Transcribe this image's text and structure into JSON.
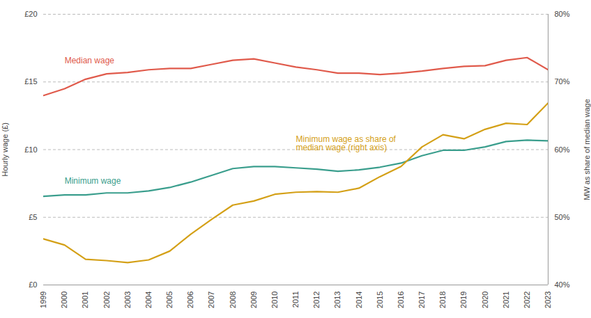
{
  "chart_data": {
    "type": "line",
    "x": [
      1999,
      2000,
      2001,
      2002,
      2003,
      2004,
      2005,
      2006,
      2007,
      2008,
      2009,
      2010,
      2011,
      2012,
      2013,
      2014,
      2015,
      2016,
      2017,
      2018,
      2019,
      2020,
      2021,
      2022,
      2023
    ],
    "series": [
      {
        "name": "Median wage",
        "color": "#e05a4b",
        "axis": "y",
        "values": [
          14.0,
          14.5,
          15.2,
          15.6,
          15.7,
          15.9,
          16.0,
          16.0,
          16.3,
          16.6,
          16.7,
          16.4,
          16.1,
          15.9,
          15.65,
          15.65,
          15.55,
          15.65,
          15.8,
          16.0,
          16.15,
          16.2,
          16.6,
          16.8,
          15.9
        ]
      },
      {
        "name": "Minimum wage",
        "color": "#3a9e8d",
        "axis": "y",
        "values": [
          6.55,
          6.65,
          6.65,
          6.8,
          6.8,
          6.95,
          7.2,
          7.6,
          8.1,
          8.6,
          8.75,
          8.75,
          8.65,
          8.55,
          8.4,
          8.5,
          8.7,
          9.0,
          9.55,
          9.95,
          9.95,
          10.2,
          10.6,
          10.7,
          10.65
        ]
      },
      {
        "name": "Minimum wage as share of\nmedian wage (right axis)",
        "color": "#d4a017",
        "axis": "y2",
        "values": [
          0.468,
          0.459,
          0.438,
          0.436,
          0.433,
          0.437,
          0.45,
          0.475,
          0.497,
          0.518,
          0.524,
          0.534,
          0.537,
          0.538,
          0.537,
          0.543,
          0.56,
          0.575,
          0.604,
          0.622,
          0.616,
          0.63,
          0.639,
          0.637,
          0.669
        ]
      }
    ],
    "y_label": "Hourly wage (£)",
    "y2_label": "MW as share of median wage",
    "xlim": [
      1999,
      2023
    ],
    "xticks": [
      1999,
      2000,
      2001,
      2002,
      2003,
      2004,
      2005,
      2006,
      2007,
      2008,
      2009,
      2010,
      2011,
      2012,
      2013,
      2014,
      2015,
      2016,
      2017,
      2018,
      2019,
      2020,
      2021,
      2022,
      2023
    ],
    "ylim": [
      0,
      20
    ],
    "yticks": [
      {
        "value": 0,
        "label": "£0"
      },
      {
        "value": 5,
        "label": "£5"
      },
      {
        "value": 10,
        "label": "£10"
      },
      {
        "value": 15,
        "label": "£15"
      },
      {
        "value": 20,
        "label": "£20"
      }
    ],
    "y2lim": [
      0.4,
      0.8
    ],
    "y2ticks": [
      {
        "value": 0.4,
        "label": "40%"
      },
      {
        "value": 0.5,
        "label": "50%"
      },
      {
        "value": 0.6,
        "label": "60%"
      },
      {
        "value": 0.7,
        "label": "70%"
      },
      {
        "value": 0.8,
        "label": "80%"
      }
    ],
    "grid": true
  }
}
